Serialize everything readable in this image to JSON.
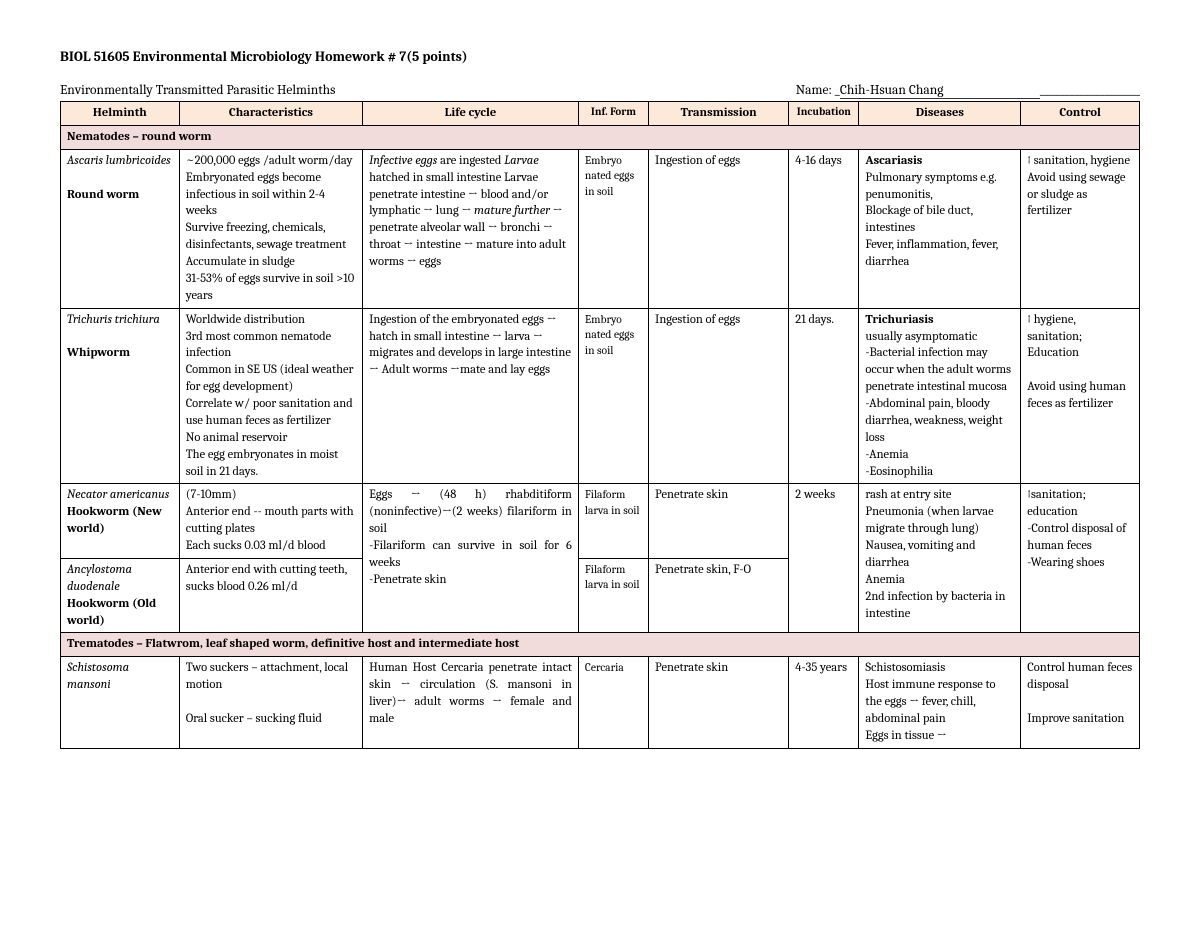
{
  "title": "BIOL 51605 Environmental Microbiology Homework # 7(5 points)",
  "subtitle": "Environmentally Transmitted Parasitic Helminths",
  "name_label": "Name: _",
  "student_name": "Chih-Hsuan Chang",
  "headers": {
    "helminth": "Helminth",
    "characteristics": "Characteristics",
    "life_cycle": "Life cycle",
    "inf_form": "Inf. Form",
    "transmission": "Transmission",
    "incubation": "Incubation",
    "diseases": "Diseases",
    "control": "Control"
  },
  "sections": {
    "nematodes": "Nematodes – round worm",
    "trematodes": "Trematodes – Flatwrom, leaf shaped worm, definitive host and intermediate host"
  },
  "rows": {
    "ascaris": {
      "helminth_italic": "Ascaris lumbricoides",
      "helminth_bold": "Round worm",
      "characteristics": "~200,000 eggs /adult worm/day\nEmbryonated eggs become infectious in soil within 2-4 weeks\nSurvive freezing, chemicals, disinfectants, sewage treatment\nAccumulate in sludge\n31-53% of eggs survive in soil >10 years",
      "life_cycle_italic": "Infective eggs",
      "life_cycle_a": " are ingested\n",
      "life_cycle_italic2": "Larvae",
      "life_cycle_b": " hatched in small intestine\nLarvae penetrate intestine → blood and/or lymphatic → lung → ",
      "life_cycle_italic3": "mature further",
      "life_cycle_c": " → penetrate alveolar wall → bronchi → throat → intestine → mature into adult worms → eggs",
      "inf_form": "Embryo nated eggs in soil",
      "transmission": "Ingestion of eggs",
      "incubation": "4-16 days",
      "disease_bold": "Ascariasis",
      "disease_rest": "\nPulmonary symptoms e.g. penumonitis,\nBlockage of bile duct, intestines\nFever, inflammation, fever, diarrhea",
      "control": "↑ sanitation, hygiene\nAvoid using sewage or sludge as fertilizer"
    },
    "trichuris": {
      "helminth_italic": "Trichuris trichiura",
      "helminth_bold": "Whipworm",
      "characteristics": "Worldwide distribution\n3rd most common nematode infection\nCommon in SE US (ideal weather for egg development)\nCorrelate w/ poor sanitation and use human feces as fertilizer\nNo animal reservoir\nThe egg embryonates in moist soil in 21 days.",
      "life_cycle": "Ingestion of the embryonated eggs → hatch in small intestine → larva → migrates and develops in large intestine → Adult worms →mate and lay eggs",
      "inf_form": "Embryo nated eggs in soil",
      "transmission": "Ingestion of eggs",
      "incubation": "21 days.",
      "disease_bold": "Trichuriasis",
      "disease_rest": "\nusually asymptomatic\n-Bacterial infection may occur when the adult worms penetrate intestinal mucosa\n-Abdominal pain, bloody diarrhea, weakness, weight loss\n-Anemia\n-Eosinophilia",
      "control": "↑ hygiene, sanitation;\nEducation\n\nAvoid using human feces as fertilizer"
    },
    "necator": {
      "helminth_italic": "Necator americanus",
      "helminth_bold": "Hookworm (New world)",
      "characteristics": "(7-10mm)\nAnterior end -- mouth parts with cutting plates\nEach sucks 0.03 ml/d blood",
      "life_cycle": "Eggs → (48 h) rhabditiform (noninfective)→(2 weeks) filariform in soil\n-Filariform can survive in soil for 6 weeks\n-Penetrate skin",
      "inf_form": "Filaform larva in soil",
      "transmission": "Penetrate skin",
      "incubation": "2 weeks",
      "diseases": "rash at entry site\nPneumonia (when larvae migrate through lung)\nNausea, vomiting and diarrhea\nAnemia\n2nd infection by bacteria in intestine",
      "control": "↑sanitation; education\n-Control disposal of human feces\n-Wearing shoes"
    },
    "ancylostoma": {
      "helminth_italic": "Ancylostoma duodenale",
      "helminth_bold": "Hookworm (Old world)",
      "characteristics": "Anterior end with cutting teeth, sucks blood 0.26 ml/d",
      "inf_form": "Filaform larva in soil",
      "transmission": "Penetrate skin, F-O"
    },
    "schistosoma": {
      "helminth_italic": "Schistosoma mansoni",
      "characteristics": "Two suckers – attachment, local motion\n\nOral sucker – sucking fluid",
      "life_cycle": "Human Host\nCercaria penetrate intact skin → circulation (S. mansoni in liver)→ adult worms → female and male",
      "inf_form": "Cercaria",
      "transmission": "Penetrate skin",
      "incubation": "4-35 years",
      "diseases": "Schistosomiasis\nHost immune response to the eggs → fever, chill, abdominal pain\nEggs in tissue →",
      "control": "Control human feces disposal\n\nImprove sanitation"
    }
  }
}
